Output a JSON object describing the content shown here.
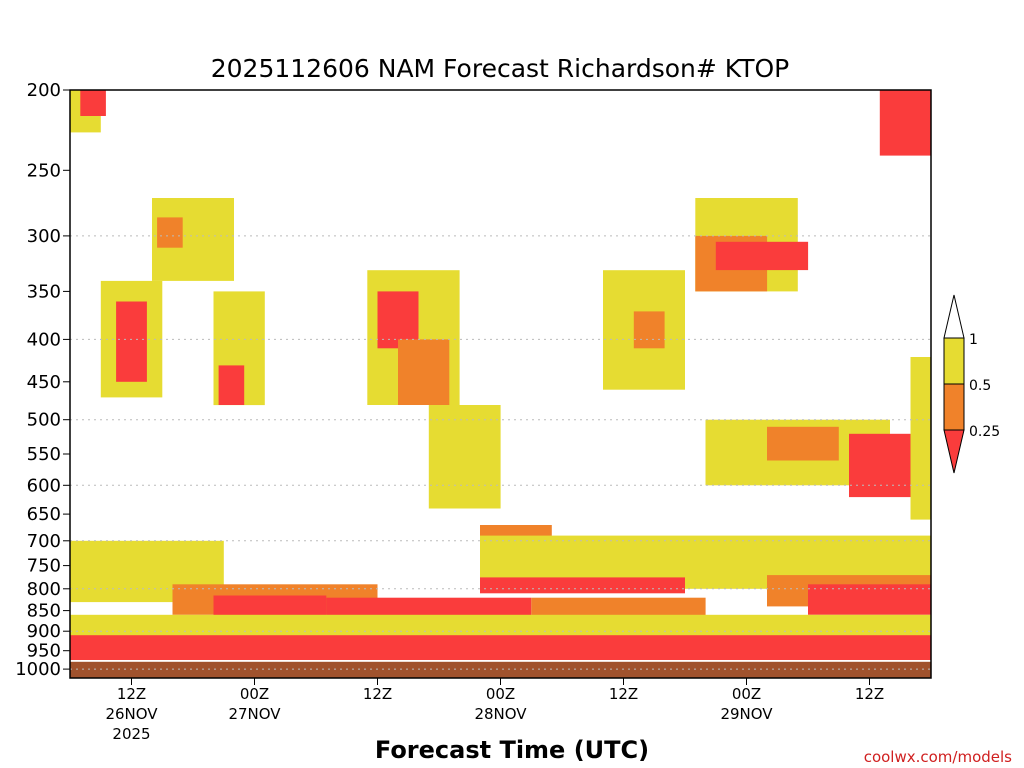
{
  "chart_data": {
    "type": "heatmap",
    "title": "2025112606 NAM Forecast Richardson# KTOP",
    "xlabel": "Forecast Time (UTC)",
    "ylabel": "",
    "credit": "coolwx.com/models",
    "x_range_hours": [
      0,
      84
    ],
    "y_axis": {
      "unit": "hPa",
      "scale": "log-pressure",
      "range": [
        1025,
        200
      ],
      "ticks": [
        200,
        250,
        300,
        350,
        400,
        450,
        500,
        550,
        600,
        650,
        700,
        750,
        800,
        850,
        900,
        950,
        1000
      ],
      "gridlines": [
        300,
        400,
        500,
        600,
        700,
        800,
        900,
        1000
      ]
    },
    "x_ticks": [
      {
        "hour": 6,
        "label": "12Z",
        "date": "26NOV",
        "year": "2025"
      },
      {
        "hour": 18,
        "label": "00Z",
        "date": "27NOV",
        "year": ""
      },
      {
        "hour": 30,
        "label": "12Z",
        "date": "",
        "year": ""
      },
      {
        "hour": 42,
        "label": "00Z",
        "date": "28NOV",
        "year": ""
      },
      {
        "hour": 54,
        "label": "12Z",
        "date": "",
        "year": ""
      },
      {
        "hour": 66,
        "label": "00Z",
        "date": "29NOV",
        "year": ""
      },
      {
        "hour": 78,
        "label": "12Z",
        "date": "",
        "year": ""
      }
    ],
    "colorbar": {
      "levels": [
        "1",
        "0.5",
        "0.25"
      ],
      "bins": [
        {
          "range": "> 1",
          "color": "#ffffff"
        },
        {
          "range": "0.5 - 1",
          "color": "#e6dc32"
        },
        {
          "range": "0.25 - 0.5",
          "color": "#f0822a"
        },
        {
          "range": "< 0.25",
          "color": "#fa3c3c"
        }
      ]
    },
    "ground": {
      "color": "#a0522d",
      "surface_pressure_hpa": 980
    },
    "regions": [
      {
        "ri_class": "0.5 - 1",
        "t": [
          0,
          3
        ],
        "p": [
          200,
          225
        ]
      },
      {
        "ri_class": "< 0.25",
        "t": [
          1,
          3.5
        ],
        "p": [
          200,
          215
        ]
      },
      {
        "ri_class": "0.5 - 1",
        "t": [
          8,
          16
        ],
        "p": [
          270,
          340
        ]
      },
      {
        "ri_class": "0.25 - 0.5",
        "t": [
          8.5,
          11
        ],
        "p": [
          285,
          310
        ]
      },
      {
        "ri_class": "0.5 - 1",
        "t": [
          3,
          9
        ],
        "p": [
          340,
          470
        ]
      },
      {
        "ri_class": "< 0.25",
        "t": [
          4.5,
          7.5
        ],
        "p": [
          360,
          450
        ]
      },
      {
        "ri_class": "0.5 - 1",
        "t": [
          14,
          19
        ],
        "p": [
          350,
          480
        ]
      },
      {
        "ri_class": "< 0.25",
        "t": [
          14.5,
          17
        ],
        "p": [
          430,
          480
        ]
      },
      {
        "ri_class": "0.5 - 1",
        "t": [
          29,
          38
        ],
        "p": [
          330,
          480
        ]
      },
      {
        "ri_class": "< 0.25",
        "t": [
          30,
          34
        ],
        "p": [
          350,
          410
        ]
      },
      {
        "ri_class": "0.25 - 0.5",
        "t": [
          32,
          37
        ],
        "p": [
          400,
          480
        ]
      },
      {
        "ri_class": "0.5 - 1",
        "t": [
          35,
          42
        ],
        "p": [
          480,
          640
        ]
      },
      {
        "ri_class": "0.25 - 0.5",
        "t": [
          40,
          47
        ],
        "p": [
          670,
          760
        ]
      },
      {
        "ri_class": "0.5 - 1",
        "t": [
          52,
          60
        ],
        "p": [
          330,
          460
        ]
      },
      {
        "ri_class": "0.25 - 0.5",
        "t": [
          55,
          58
        ],
        "p": [
          370,
          410
        ]
      },
      {
        "ri_class": "0.5 - 1",
        "t": [
          61,
          71
        ],
        "p": [
          270,
          350
        ]
      },
      {
        "ri_class": "0.25 - 0.5",
        "t": [
          61,
          68
        ],
        "p": [
          300,
          350
        ]
      },
      {
        "ri_class": "< 0.25",
        "t": [
          63,
          72
        ],
        "p": [
          305,
          330
        ]
      },
      {
        "ri_class": "0.5 - 1",
        "t": [
          62,
          80
        ],
        "p": [
          500,
          600
        ]
      },
      {
        "ri_class": "0.25 - 0.5",
        "t": [
          68,
          75
        ],
        "p": [
          510,
          560
        ]
      },
      {
        "ri_class": "< 0.25",
        "t": [
          76,
          84
        ],
        "p": [
          520,
          620
        ]
      },
      {
        "ri_class": "0.5 - 1",
        "t": [
          82,
          84
        ],
        "p": [
          420,
          660
        ]
      },
      {
        "ri_class": "< 0.25",
        "t": [
          79,
          84
        ],
        "p": [
          200,
          240
        ]
      },
      {
        "ri_class": "0.5 - 1",
        "t": [
          0,
          15
        ],
        "p": [
          700,
          830
        ]
      },
      {
        "ri_class": "0.25 - 0.5",
        "t": [
          10,
          30
        ],
        "p": [
          790,
          860
        ]
      },
      {
        "ri_class": "< 0.25",
        "t": [
          14,
          25
        ],
        "p": [
          815,
          880
        ]
      },
      {
        "ri_class": "0.5 - 1",
        "t": [
          40,
          84
        ],
        "p": [
          690,
          800
        ]
      },
      {
        "ri_class": "< 0.25",
        "t": [
          40,
          60
        ],
        "p": [
          775,
          810
        ]
      },
      {
        "ri_class": "0.25 - 0.5",
        "t": [
          68,
          84
        ],
        "p": [
          770,
          840
        ]
      },
      {
        "ri_class": "< 0.25",
        "t": [
          72,
          84
        ],
        "p": [
          790,
          860
        ]
      },
      {
        "ri_class": "< 0.25",
        "t": [
          25,
          45
        ],
        "p": [
          820,
          900
        ]
      },
      {
        "ri_class": "0.25 - 0.5",
        "t": [
          45,
          62
        ],
        "p": [
          820,
          880
        ]
      },
      {
        "ri_class": "0.5 - 1",
        "t": [
          0,
          84
        ],
        "p": [
          860,
          920
        ]
      },
      {
        "ri_class": "< 0.25",
        "t": [
          0,
          84
        ],
        "p": [
          910,
          975
        ]
      }
    ]
  }
}
